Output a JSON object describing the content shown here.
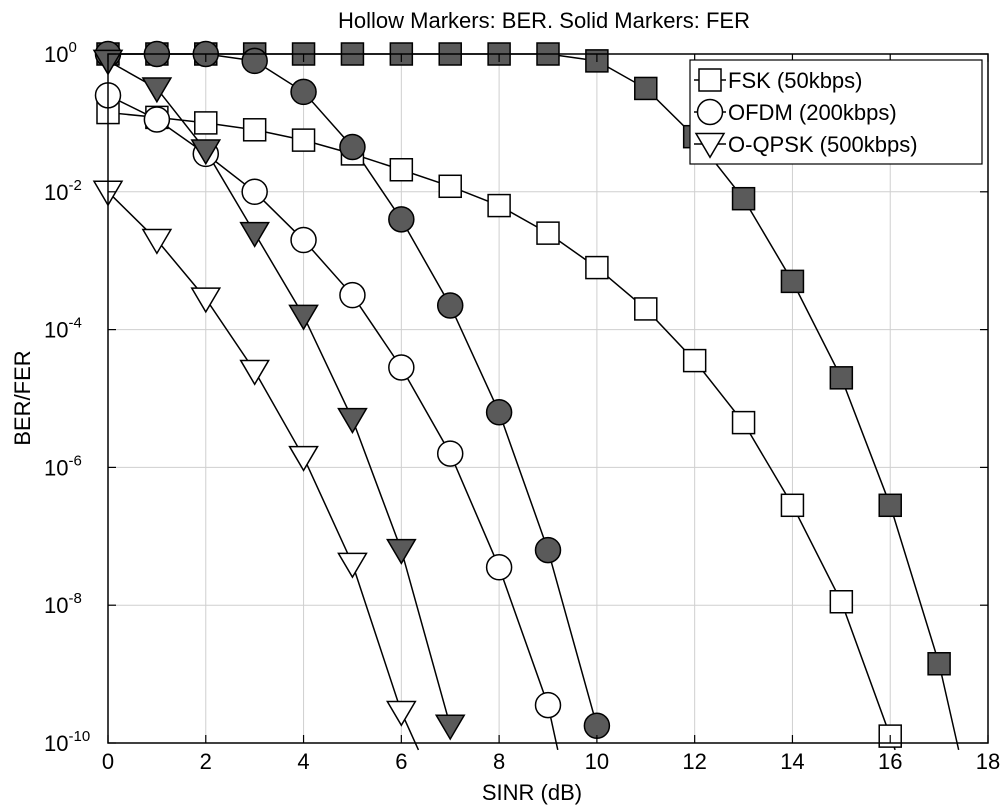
{
  "chart_data": {
    "type": "line",
    "title": "Hollow Markers: BER. Solid Markers: FER",
    "xlabel": "SINR (dB)",
    "ylabel": "BER/FER",
    "xlim": [
      0,
      18
    ],
    "ylim_exp": [
      -10,
      0
    ],
    "yscale": "log",
    "grid": true,
    "x_ticks": [
      "0",
      "2",
      "4",
      "6",
      "8",
      "10",
      "12",
      "14",
      "16",
      "18"
    ],
    "y_ticks": [
      {
        "base": "10",
        "exp": "0"
      },
      {
        "base": "10",
        "exp": "-2"
      },
      {
        "base": "10",
        "exp": "-4"
      },
      {
        "base": "10",
        "exp": "-6"
      },
      {
        "base": "10",
        "exp": "-8"
      },
      {
        "base": "10",
        "exp": "-10"
      }
    ],
    "legend_position": "top-right",
    "legend": [
      {
        "label": "FSK (50kbps)",
        "marker": "square"
      },
      {
        "label": "OFDM (200kbps)",
        "marker": "circle"
      },
      {
        "label": "O-QPSK (500kbps)",
        "marker": "triangle-down"
      }
    ],
    "series": [
      {
        "modulation": "FSK",
        "metric": "BER",
        "marker": "square",
        "filled": false,
        "x": [
          0,
          1,
          2,
          3,
          4,
          5,
          6,
          7,
          8,
          9,
          10,
          11,
          12,
          13,
          14,
          15,
          16
        ],
        "y_exp": [
          -0.85,
          -0.92,
          -1.0,
          -1.1,
          -1.25,
          -1.45,
          -1.68,
          -1.92,
          -2.2,
          -2.6,
          -3.1,
          -3.7,
          -4.45,
          -5.35,
          -6.55,
          -7.95,
          -9.9
        ],
        "line_end": {
          "x": 16.1,
          "y_exp": -10.1
        }
      },
      {
        "modulation": "FSK",
        "metric": "FER",
        "marker": "square",
        "filled": true,
        "x": [
          0,
          1,
          2,
          3,
          4,
          5,
          6,
          7,
          8,
          9,
          10,
          11,
          12,
          13,
          14,
          15,
          16,
          17
        ],
        "y_exp": [
          0,
          0,
          0,
          0,
          0,
          0,
          0,
          0,
          0,
          0,
          -0.1,
          -0.5,
          -1.2,
          -2.1,
          -3.3,
          -4.7,
          -6.55,
          -8.85
        ],
        "line_end": {
          "x": 17.4,
          "y_exp": -10.1
        }
      },
      {
        "modulation": "OFDM",
        "metric": "BER",
        "marker": "circle",
        "filled": false,
        "x": [
          0,
          1,
          2,
          3,
          4,
          5,
          6,
          7,
          8,
          9
        ],
        "y_exp": [
          -0.6,
          -0.95,
          -1.45,
          -2.0,
          -2.7,
          -3.5,
          -4.55,
          -5.8,
          -7.45,
          -9.45
        ],
        "line_end": {
          "x": 9.2,
          "y_exp": -10.1
        }
      },
      {
        "modulation": "OFDM",
        "metric": "FER",
        "marker": "circle",
        "filled": true,
        "x": [
          0,
          1,
          2,
          3,
          4,
          5,
          6,
          7,
          8,
          9,
          10
        ],
        "y_exp": [
          0,
          0,
          0,
          -0.1,
          -0.55,
          -1.35,
          -2.4,
          -3.65,
          -5.2,
          -7.2,
          -9.75
        ]
      },
      {
        "modulation": "O-QPSK",
        "metric": "BER",
        "marker": "triangle-down",
        "filled": false,
        "x": [
          0,
          1,
          2,
          3,
          4,
          5,
          6
        ],
        "y_exp": [
          -2.0,
          -2.7,
          -3.55,
          -4.6,
          -5.85,
          -7.4,
          -9.55
        ],
        "line_end": {
          "x": 6.35,
          "y_exp": -10.1
        }
      },
      {
        "modulation": "O-QPSK",
        "metric": "FER",
        "marker": "triangle-down",
        "filled": true,
        "x": [
          0,
          1,
          2,
          3,
          4,
          5,
          6,
          7
        ],
        "y_exp": [
          -0.1,
          -0.5,
          -1.4,
          -2.6,
          -3.8,
          -5.3,
          -7.2,
          -9.75
        ]
      }
    ]
  },
  "style": {
    "marker_fill": "#5a5a5a",
    "hollow_fill": "#ffffff",
    "line_color": "#000000",
    "grid_color": "#cfcfcf"
  }
}
